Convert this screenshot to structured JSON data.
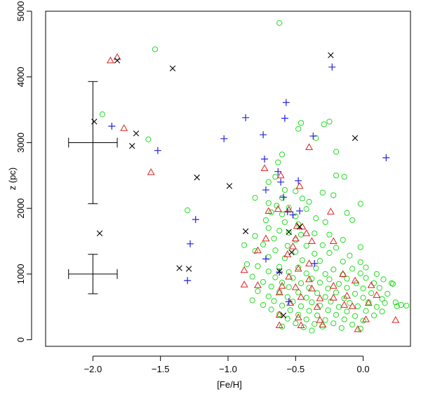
{
  "chart_data": {
    "type": "scatter",
    "title": "",
    "xlabel": "[Fe/H]",
    "ylabel": "z (pc)",
    "xlim": [
      -2.35,
      0.35
    ],
    "ylim": [
      -100,
      5000
    ],
    "xticks": [
      -2.0,
      -1.5,
      -1.0,
      -0.5,
      0.0
    ],
    "xtick_labels": [
      "−2.0",
      "−1.5",
      "−1.0",
      "−0.5",
      "0.0"
    ],
    "yticks": [
      0,
      1000,
      2000,
      3000,
      4000,
      5000
    ],
    "ytick_labels": [
      "0",
      "1000",
      "2000",
      "3000",
      "4000",
      "5000"
    ],
    "grid": false,
    "legend": "none",
    "error_bars": [
      {
        "x": -2.0,
        "y": 3000,
        "xerr": 0.18,
        "yerr": 930
      },
      {
        "x": -2.0,
        "y": 1000,
        "xerr": 0.18,
        "yerr": 300
      }
    ],
    "series": [
      {
        "marker": "circle",
        "color": "#22dd22",
        "points": [
          [
            -0.62,
            4820
          ],
          [
            -1.54,
            4420
          ],
          [
            -1.93,
            3430
          ],
          [
            -1.59,
            3050
          ],
          [
            -1.3,
            1970
          ],
          [
            -0.25,
            3320
          ],
          [
            -0.29,
            3280
          ],
          [
            -0.46,
            3300
          ],
          [
            -0.48,
            3210
          ],
          [
            -0.2,
            2860
          ],
          [
            -0.35,
            3070
          ],
          [
            -0.6,
            2820
          ],
          [
            -0.63,
            2700
          ],
          [
            -0.2,
            2500
          ],
          [
            -0.14,
            2480
          ],
          [
            -0.65,
            2480
          ],
          [
            -0.7,
            2400
          ],
          [
            -0.58,
            2280
          ],
          [
            -0.5,
            2260
          ],
          [
            -0.3,
            2240
          ],
          [
            -0.22,
            2200
          ],
          [
            -0.8,
            2160
          ],
          [
            -0.6,
            2160
          ],
          [
            -0.45,
            2150
          ],
          [
            -0.4,
            2100
          ],
          [
            -0.7,
            2080
          ],
          [
            -0.64,
            2040
          ],
          [
            -0.55,
            2010
          ],
          [
            -0.42,
            1990
          ],
          [
            -0.02,
            2070
          ],
          [
            -0.12,
            1930
          ],
          [
            -0.68,
            1940
          ],
          [
            -0.6,
            1910
          ],
          [
            -0.5,
            1880
          ],
          [
            -0.35,
            1850
          ],
          [
            -0.72,
            1820
          ],
          [
            -0.58,
            1790
          ],
          [
            -0.48,
            1760
          ],
          [
            -0.28,
            1790
          ],
          [
            -0.08,
            1820
          ],
          [
            -0.7,
            1700
          ],
          [
            -0.62,
            1660
          ],
          [
            -0.55,
            1630
          ],
          [
            -0.46,
            1600
          ],
          [
            -0.36,
            1620
          ],
          [
            -0.25,
            1600
          ],
          [
            -0.8,
            1580
          ],
          [
            -0.66,
            1540
          ],
          [
            -0.5,
            1520
          ],
          [
            -0.15,
            1520
          ],
          [
            -0.88,
            1440
          ],
          [
            -0.74,
            1450
          ],
          [
            -0.56,
            1430
          ],
          [
            -0.42,
            1430
          ],
          [
            -0.3,
            1440
          ],
          [
            -0.2,
            1400
          ],
          [
            -0.02,
            1410
          ],
          [
            -0.8,
            1350
          ],
          [
            -0.65,
            1360
          ],
          [
            -0.5,
            1340
          ],
          [
            -0.36,
            1310
          ],
          [
            -0.25,
            1320
          ],
          [
            -0.1,
            1280
          ],
          [
            -0.7,
            1260
          ],
          [
            -0.58,
            1240
          ],
          [
            -0.45,
            1210
          ],
          [
            -0.32,
            1200
          ],
          [
            -0.15,
            1190
          ],
          [
            -0.02,
            1180
          ],
          [
            -0.86,
            1150
          ],
          [
            -0.78,
            1120
          ],
          [
            -0.62,
            1110
          ],
          [
            -0.48,
            1100
          ],
          [
            -0.35,
            1090
          ],
          [
            -0.22,
            1070
          ],
          [
            -0.08,
            1080
          ],
          [
            0.02,
            1100
          ],
          [
            -0.7,
            1040
          ],
          [
            -0.55,
            1030
          ],
          [
            -0.42,
            1010
          ],
          [
            -0.28,
            1000
          ],
          [
            -0.15,
            990
          ],
          [
            -0.02,
            1010
          ],
          [
            0.1,
            1000
          ],
          [
            -0.82,
            960
          ],
          [
            -0.65,
            950
          ],
          [
            -0.52,
            940
          ],
          [
            -0.38,
            930
          ],
          [
            -0.25,
            920
          ],
          [
            -0.12,
            930
          ],
          [
            0.02,
            940
          ],
          [
            0.15,
            920
          ],
          [
            -0.74,
            880
          ],
          [
            -0.6,
            870
          ],
          [
            -0.46,
            860
          ],
          [
            -0.32,
            870
          ],
          [
            -0.18,
            850
          ],
          [
            -0.05,
            860
          ],
          [
            0.08,
            860
          ],
          [
            0.22,
            850
          ],
          [
            -0.68,
            810
          ],
          [
            -0.55,
            800
          ],
          [
            -0.4,
            790
          ],
          [
            -0.26,
            780
          ],
          [
            -0.12,
            790
          ],
          [
            0.0,
            780
          ],
          [
            0.12,
            790
          ],
          [
            -0.78,
            740
          ],
          [
            -0.62,
            730
          ],
          [
            -0.48,
            720
          ],
          [
            -0.34,
            710
          ],
          [
            -0.2,
            720
          ],
          [
            -0.06,
            700
          ],
          [
            0.06,
            710
          ],
          [
            0.18,
            700
          ],
          [
            -0.7,
            660
          ],
          [
            -0.56,
            650
          ],
          [
            -0.42,
            640
          ],
          [
            -0.28,
            650
          ],
          [
            -0.14,
            630
          ],
          [
            0.0,
            640
          ],
          [
            0.14,
            620
          ],
          [
            -0.82,
            600
          ],
          [
            -0.66,
            590
          ],
          [
            -0.52,
            580
          ],
          [
            -0.38,
            570
          ],
          [
            -0.24,
            580
          ],
          [
            -0.1,
            560
          ],
          [
            0.04,
            570
          ],
          [
            0.16,
            560
          ],
          [
            0.24,
            570
          ],
          [
            -0.74,
            530
          ],
          [
            -0.6,
            520
          ],
          [
            -0.46,
            510
          ],
          [
            -0.32,
            520
          ],
          [
            -0.18,
            500
          ],
          [
            -0.04,
            510
          ],
          [
            0.1,
            500
          ],
          [
            0.28,
            530
          ],
          [
            -0.68,
            460
          ],
          [
            -0.54,
            450
          ],
          [
            -0.4,
            440
          ],
          [
            -0.26,
            450
          ],
          [
            -0.12,
            430
          ],
          [
            0.02,
            440
          ],
          [
            0.14,
            430
          ],
          [
            -0.62,
            390
          ],
          [
            -0.48,
            380
          ],
          [
            -0.34,
            370
          ],
          [
            -0.2,
            380
          ],
          [
            -0.06,
            360
          ],
          [
            0.08,
            370
          ],
          [
            -0.56,
            320
          ],
          [
            -0.42,
            310
          ],
          [
            -0.28,
            300
          ],
          [
            -0.14,
            310
          ],
          [
            0.0,
            290
          ],
          [
            -0.5,
            250
          ],
          [
            -0.36,
            240
          ],
          [
            -0.22,
            250
          ],
          [
            -0.08,
            230
          ],
          [
            -0.6,
            200
          ],
          [
            -0.44,
            190
          ],
          [
            -0.3,
            200
          ],
          [
            -0.16,
            180
          ],
          [
            -0.38,
            140
          ],
          [
            -0.02,
            170
          ],
          [
            0.21,
            860
          ],
          [
            0.32,
            520
          ],
          [
            0.25,
            510
          ]
        ]
      },
      {
        "marker": "triangle",
        "color": "#dd2222",
        "points": [
          [
            -1.87,
            4250
          ],
          [
            -1.82,
            4300
          ],
          [
            -1.77,
            3220
          ],
          [
            -1.57,
            2550
          ],
          [
            -0.73,
            2610
          ],
          [
            -0.61,
            2500
          ],
          [
            -0.4,
            2930
          ],
          [
            -0.47,
            2340
          ],
          [
            -0.24,
            1950
          ],
          [
            -0.22,
            1500
          ],
          [
            -0.7,
            1960
          ],
          [
            -0.63,
            1990
          ],
          [
            -0.55,
            1980
          ],
          [
            -0.49,
            1730
          ],
          [
            -0.45,
            1720
          ],
          [
            -0.42,
            1620
          ],
          [
            -0.5,
            1540
          ],
          [
            -0.38,
            1500
          ],
          [
            -0.52,
            1420
          ],
          [
            -0.78,
            1360
          ],
          [
            -0.56,
            1300
          ],
          [
            -0.72,
            1540
          ],
          [
            -0.4,
            1160
          ],
          [
            -0.88,
            1060
          ],
          [
            -0.48,
            1080
          ],
          [
            -0.15,
            1000
          ],
          [
            -0.55,
            960
          ],
          [
            -0.4,
            920
          ],
          [
            -0.06,
            900
          ],
          [
            -0.88,
            840
          ],
          [
            -0.78,
            830
          ],
          [
            -0.6,
            820
          ],
          [
            -0.5,
            800
          ],
          [
            -0.38,
            780
          ],
          [
            -0.22,
            820
          ],
          [
            0.06,
            830
          ],
          [
            -0.62,
            720
          ],
          [
            -0.46,
            650
          ],
          [
            -0.32,
            630
          ],
          [
            -0.12,
            670
          ],
          [
            0.1,
            680
          ],
          [
            -0.54,
            560
          ],
          [
            -0.34,
            500
          ],
          [
            -0.14,
            530
          ],
          [
            -0.62,
            380
          ],
          [
            -0.48,
            340
          ],
          [
            -0.32,
            300
          ],
          [
            0.02,
            310
          ],
          [
            -0.62,
            220
          ],
          [
            -0.46,
            220
          ],
          [
            -0.3,
            230
          ],
          [
            -0.04,
            160
          ],
          [
            0.24,
            300
          ],
          [
            -0.22,
            640
          ],
          [
            -0.08,
            510
          ],
          [
            0.04,
            560
          ]
        ]
      },
      {
        "marker": "plus",
        "color": "#2222dd",
        "points": [
          [
            -1.86,
            3250
          ],
          [
            -1.52,
            2880
          ],
          [
            -1.24,
            1830
          ],
          [
            -1.28,
            1460
          ],
          [
            -1.3,
            900
          ],
          [
            -1.03,
            3060
          ],
          [
            -0.87,
            3380
          ],
          [
            -0.74,
            3120
          ],
          [
            -0.73,
            2750
          ],
          [
            -0.57,
            3610
          ],
          [
            -0.58,
            3370
          ],
          [
            -0.37,
            3100
          ],
          [
            -0.23,
            4150
          ],
          [
            0.17,
            2770
          ],
          [
            -0.63,
            2560
          ],
          [
            -0.61,
            2400
          ],
          [
            -0.59,
            2170
          ],
          [
            -0.48,
            2420
          ],
          [
            -0.72,
            2280
          ],
          [
            -0.56,
            1950
          ],
          [
            -0.47,
            1960
          ],
          [
            -0.52,
            1900
          ],
          [
            -0.72,
            1230
          ],
          [
            -0.36,
            1160
          ],
          [
            -0.62,
            1030
          ],
          [
            -0.55,
            580
          ]
        ]
      },
      {
        "marker": "cross",
        "color": "#000000",
        "points": [
          [
            -1.82,
            4250
          ],
          [
            -1.41,
            4130
          ],
          [
            -0.24,
            4330
          ],
          [
            -1.99,
            3320
          ],
          [
            -1.68,
            3140
          ],
          [
            -1.71,
            2950
          ],
          [
            -1.23,
            2470
          ],
          [
            -0.99,
            2340
          ],
          [
            -0.06,
            3070
          ],
          [
            -0.87,
            1650
          ],
          [
            -0.55,
            1640
          ],
          [
            -0.47,
            1720
          ],
          [
            -1.95,
            1620
          ],
          [
            -0.53,
            1330
          ],
          [
            -0.62,
            1040
          ],
          [
            -1.36,
            1090
          ],
          [
            -1.29,
            1080
          ],
          [
            -0.59,
            370
          ]
        ]
      }
    ]
  }
}
